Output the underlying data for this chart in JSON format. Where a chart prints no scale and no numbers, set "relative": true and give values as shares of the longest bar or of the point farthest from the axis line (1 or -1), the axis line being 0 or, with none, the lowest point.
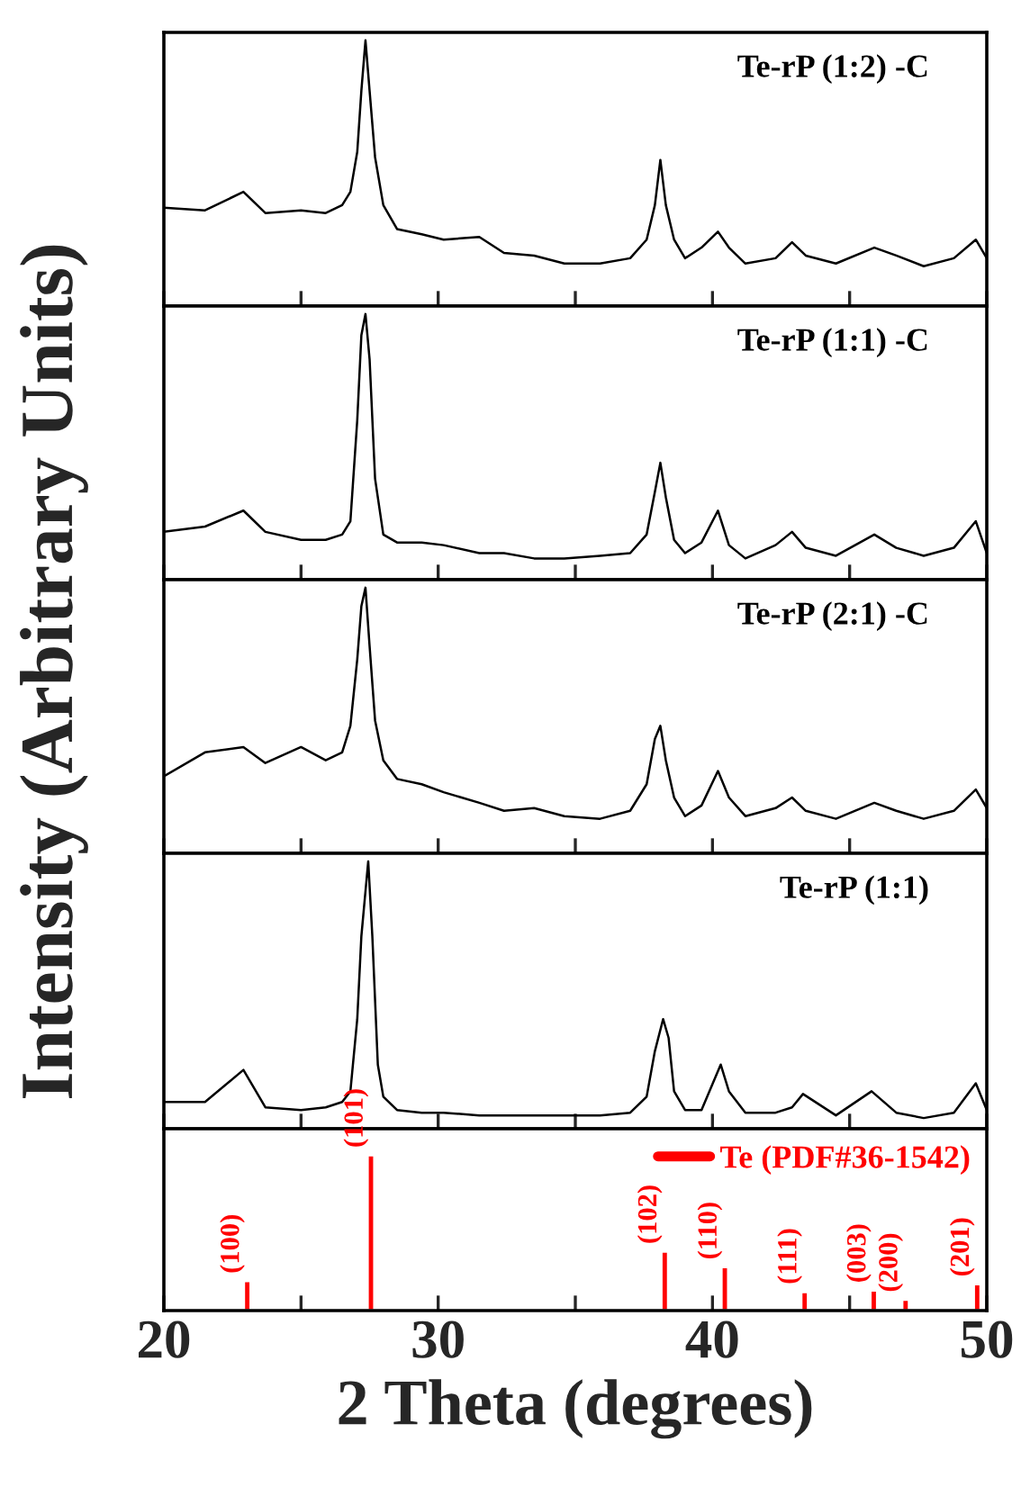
{
  "chart_data": [
    {
      "type": "line",
      "relative": true,
      "ylabel": "Intensity (Arbitrary Units)",
      "xlim": [
        20,
        50
      ],
      "xticks": [
        20,
        {
          "value": 25,
          "label": null
        },
        30,
        {
          "value": 35,
          "label": null
        },
        40,
        {
          "value": 45,
          "label": null
        },
        50
      ],
      "tick_labels": false,
      "series": [
        {
          "name": "Te-rP (1:2) -C",
          "color": "#000000",
          "x": [
            20,
            21.5,
            22.9,
            23.7,
            25,
            25.9,
            26.5,
            26.8,
            27.05,
            27.2,
            27.35,
            27.5,
            27.7,
            28,
            28.5,
            29.4,
            30.2,
            31.5,
            32.4,
            33.5,
            34.6,
            35.9,
            37,
            37.6,
            37.9,
            38.1,
            38.3,
            38.6,
            39,
            39.6,
            40.2,
            40.6,
            41.2,
            42.3,
            42.9,
            43.4,
            44.5,
            45.9,
            46.7,
            47.7,
            48.8,
            49.6,
            50
          ],
          "values": [
            0.37,
            0.36,
            0.43,
            0.35,
            0.36,
            0.35,
            0.38,
            0.43,
            0.58,
            0.81,
            1.0,
            0.81,
            0.56,
            0.38,
            0.29,
            0.27,
            0.25,
            0.26,
            0.2,
            0.19,
            0.16,
            0.16,
            0.18,
            0.25,
            0.38,
            0.55,
            0.38,
            0.25,
            0.18,
            0.22,
            0.28,
            0.22,
            0.16,
            0.18,
            0.24,
            0.19,
            0.16,
            0.22,
            0.19,
            0.15,
            0.18,
            0.25,
            0.18
          ]
        }
      ]
    },
    {
      "type": "line",
      "relative": true,
      "xlim": [
        20,
        50
      ],
      "xticks": [
        20,
        {
          "value": 25,
          "label": null
        },
        30,
        {
          "value": 35,
          "label": null
        },
        40,
        {
          "value": 45,
          "label": null
        },
        50
      ],
      "tick_labels": false,
      "series": [
        {
          "name": "Te-rP (1:1) -C",
          "color": "#000000",
          "x": [
            20,
            21.5,
            22.9,
            23.7,
            25,
            25.9,
            26.5,
            26.8,
            27.05,
            27.2,
            27.35,
            27.5,
            27.7,
            28,
            28.5,
            29.4,
            30.2,
            31.5,
            32.4,
            33.5,
            34.6,
            35.9,
            37,
            37.6,
            37.9,
            38.1,
            38.3,
            38.6,
            39,
            39.6,
            40.2,
            40.6,
            41.2,
            42.3,
            42.9,
            43.4,
            44.5,
            45.9,
            46.7,
            47.7,
            48.8,
            49.6,
            50
          ],
          "values": [
            0.18,
            0.2,
            0.26,
            0.18,
            0.15,
            0.15,
            0.17,
            0.22,
            0.6,
            0.92,
            1.0,
            0.83,
            0.38,
            0.17,
            0.14,
            0.14,
            0.13,
            0.1,
            0.1,
            0.08,
            0.08,
            0.09,
            0.1,
            0.17,
            0.33,
            0.44,
            0.31,
            0.15,
            0.1,
            0.14,
            0.26,
            0.13,
            0.08,
            0.13,
            0.18,
            0.12,
            0.09,
            0.17,
            0.12,
            0.09,
            0.12,
            0.22,
            0.1
          ]
        }
      ]
    },
    {
      "type": "line",
      "relative": true,
      "xlim": [
        20,
        50
      ],
      "xticks": [
        20,
        {
          "value": 25,
          "label": null
        },
        30,
        {
          "value": 35,
          "label": null
        },
        40,
        {
          "value": 45,
          "label": null
        },
        50
      ],
      "tick_labels": false,
      "series": [
        {
          "name": "Te-rP (2:1) -C",
          "color": "#000000",
          "x": [
            20,
            21.5,
            22.9,
            23.7,
            25,
            25.9,
            26.5,
            26.8,
            27.05,
            27.2,
            27.35,
            27.5,
            27.7,
            28,
            28.5,
            29.4,
            30.2,
            31.5,
            32.4,
            33.5,
            34.6,
            35.9,
            37,
            37.6,
            37.9,
            38.1,
            38.3,
            38.6,
            39,
            39.6,
            40.2,
            40.6,
            41.2,
            42.3,
            42.9,
            43.4,
            44.5,
            45.9,
            46.7,
            47.7,
            48.8,
            49.6,
            50
          ],
          "values": [
            0.29,
            0.38,
            0.4,
            0.34,
            0.4,
            0.35,
            0.38,
            0.48,
            0.73,
            0.93,
            1.0,
            0.78,
            0.5,
            0.35,
            0.28,
            0.26,
            0.23,
            0.19,
            0.16,
            0.17,
            0.14,
            0.13,
            0.16,
            0.26,
            0.43,
            0.48,
            0.35,
            0.21,
            0.14,
            0.18,
            0.31,
            0.21,
            0.14,
            0.17,
            0.21,
            0.16,
            0.13,
            0.19,
            0.16,
            0.13,
            0.16,
            0.24,
            0.17
          ]
        }
      ]
    },
    {
      "type": "line",
      "relative": true,
      "xlim": [
        20,
        50
      ],
      "xticks": [
        20,
        {
          "value": 25,
          "label": null
        },
        30,
        {
          "value": 35,
          "label": null
        },
        40,
        {
          "value": 45,
          "label": null
        },
        50
      ],
      "tick_labels": false,
      "series": [
        {
          "name": "Te-rP (1:1)",
          "color": "#000000",
          "x": [
            20,
            21.5,
            22.9,
            23.7,
            25,
            25.9,
            26.5,
            26.8,
            27.05,
            27.2,
            27.45,
            27.6,
            27.8,
            28,
            28.5,
            29.4,
            30.2,
            31.5,
            32.4,
            33.5,
            34.6,
            35.9,
            37,
            37.6,
            37.9,
            38.2,
            38.4,
            38.6,
            39,
            39.6,
            40.3,
            40.6,
            41.2,
            42.3,
            42.9,
            43.3,
            44.5,
            45.8,
            46.7,
            47.7,
            48.8,
            49.6,
            50
          ],
          "values": [
            0.1,
            0.1,
            0.22,
            0.08,
            0.07,
            0.08,
            0.1,
            0.14,
            0.41,
            0.72,
            1.0,
            0.72,
            0.24,
            0.12,
            0.07,
            0.06,
            0.06,
            0.05,
            0.05,
            0.05,
            0.05,
            0.05,
            0.06,
            0.12,
            0.29,
            0.41,
            0.34,
            0.14,
            0.07,
            0.07,
            0.24,
            0.14,
            0.06,
            0.06,
            0.08,
            0.13,
            0.05,
            0.14,
            0.06,
            0.04,
            0.06,
            0.17,
            0.07
          ]
        }
      ]
    },
    {
      "type": "bar",
      "relative": true,
      "xlabel": "2 Theta (degrees)",
      "xlim": [
        20,
        50
      ],
      "xticks": [
        20,
        {
          "value": 25,
          "label": null
        },
        30,
        {
          "value": 35,
          "label": null
        },
        40,
        {
          "value": 45,
          "label": null
        },
        50
      ],
      "tick_labels": "x",
      "legend": "top right",
      "series": [
        {
          "name": "Te (PDF#36-1542)",
          "color": "#ff0000",
          "x": [
            23.04,
            27.55,
            38.26,
            40.45,
            43.36,
            45.88,
            47.04,
            49.65
          ],
          "values": [
            0.19,
            1.0,
            0.38,
            0.28,
            0.12,
            0.13,
            0.07,
            0.17
          ]
        }
      ],
      "annotations": [
        {
          "text": "(100)",
          "x": 23.04,
          "y": 0.19
        },
        {
          "text": "(101)",
          "x": 27.55,
          "y": 1.0
        },
        {
          "text": "(102)",
          "x": 38.26,
          "y": 0.38
        },
        {
          "text": "(110)",
          "x": 40.45,
          "y": 0.28
        },
        {
          "text": "(111)",
          "x": 43.36,
          "y": 0.12
        },
        {
          "text": "(003)",
          "x": 45.88,
          "y": 0.13
        },
        {
          "text": "(200)",
          "x": 47.04,
          "y": 0.07
        },
        {
          "text": "(201)",
          "x": 49.65,
          "y": 0.17
        }
      ]
    }
  ]
}
